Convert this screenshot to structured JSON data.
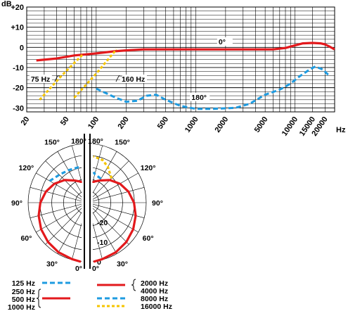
{
  "colors": {
    "red": "#e3191c",
    "blue": "#1e9be0",
    "yellow": "#f5c400",
    "grid": "#000000"
  },
  "chart_data": [
    {
      "type": "line",
      "x_scale": "log",
      "xlim": [
        20,
        25000
      ],
      "ylim": [
        -32,
        20
      ],
      "ylabel": "dB",
      "xlabel": "Hz",
      "y_ticks": [
        {
          "value": 20,
          "label": "+20"
        },
        {
          "value": 10,
          "label": "+10"
        },
        {
          "value": 0,
          "label": "0"
        },
        {
          "value": -10,
          "label": "-10"
        },
        {
          "value": -20,
          "label": "-20"
        },
        {
          "value": -30,
          "label": "-30"
        }
      ],
      "x_ticks": [
        {
          "value": 20,
          "label": "20"
        },
        {
          "value": 50,
          "label": "50"
        },
        {
          "value": 100,
          "label": "100"
        },
        {
          "value": 200,
          "label": "200"
        },
        {
          "value": 500,
          "label": "500"
        },
        {
          "value": 1000,
          "label": "1000"
        },
        {
          "value": 2000,
          "label": "2000"
        },
        {
          "value": 5000,
          "label": "5000"
        },
        {
          "value": 10000,
          "label": "10000"
        },
        {
          "value": 15000,
          "label": "15000"
        },
        {
          "value": 20000,
          "label": "20000"
        }
      ],
      "annotations": [
        "0°",
        "180°",
        "75 Hz",
        "160 Hz"
      ],
      "series": [
        {
          "name": "0°",
          "style": "solid",
          "color": "red",
          "points": [
            [
              25,
              -6.5
            ],
            [
              40,
              -5.5
            ],
            [
              60,
              -4
            ],
            [
              100,
              -3
            ],
            [
              150,
              -2
            ],
            [
              200,
              -1.5
            ],
            [
              300,
              -1
            ],
            [
              500,
              -1
            ],
            [
              1000,
              -1
            ],
            [
              2000,
              -1
            ],
            [
              4000,
              -1
            ],
            [
              6000,
              -1
            ],
            [
              8000,
              -0.3
            ],
            [
              10000,
              1
            ],
            [
              12000,
              2
            ],
            [
              15000,
              2.2
            ],
            [
              18000,
              2
            ],
            [
              20000,
              1.5
            ],
            [
              22000,
              0.5
            ],
            [
              25000,
              -1
            ]
          ]
        },
        {
          "name": "180°",
          "style": "dashed",
          "color": "blue",
          "points": [
            [
              100,
              -20.5
            ],
            [
              150,
              -24.5
            ],
            [
              200,
              -27
            ],
            [
              260,
              -26.5
            ],
            [
              320,
              -24
            ],
            [
              400,
              -23.5
            ],
            [
              500,
              -26
            ],
            [
              700,
              -29
            ],
            [
              1000,
              -30.5
            ],
            [
              1500,
              -30.5
            ],
            [
              2500,
              -30
            ],
            [
              3500,
              -28
            ],
            [
              5000,
              -23.5
            ],
            [
              7000,
              -21
            ],
            [
              9000,
              -18
            ],
            [
              11000,
              -14.5
            ],
            [
              14000,
              -11
            ],
            [
              16000,
              -9.5
            ],
            [
              19000,
              -11
            ],
            [
              22000,
              -14
            ]
          ]
        },
        {
          "name": "75 Hz",
          "style": "dashed",
          "color": "yellow",
          "points": [
            [
              27,
              -26
            ],
            [
              45,
              -14
            ],
            [
              75,
              -3
            ]
          ]
        },
        {
          "name": "160 Hz",
          "style": "dashed",
          "color": "yellow",
          "points": [
            [
              60,
              -25
            ],
            [
              100,
              -13
            ],
            [
              160,
              -1
            ]
          ]
        }
      ]
    },
    {
      "type": "polar",
      "angle_labels": [
        {
          "angle": 180,
          "label": "180°"
        },
        {
          "angle": 150,
          "label": "150°"
        },
        {
          "angle": 120,
          "label": "120°"
        },
        {
          "angle": 90,
          "label": "90°"
        },
        {
          "angle": 60,
          "label": "60°"
        },
        {
          "angle": 30,
          "label": "30°"
        },
        {
          "angle": 0,
          "label": "0°"
        }
      ],
      "radial_ticks": [
        {
          "value": 0,
          "label": "0"
        },
        {
          "value": -10,
          "label": "-10"
        },
        {
          "value": -20,
          "label": "-20"
        }
      ],
      "radial_range_db": [
        -30,
        0
      ],
      "legend": {
        "left": [
          {
            "labels": [
              "125 Hz"
            ],
            "color": "blue",
            "style": "dashed"
          },
          {
            "labels": [
              "250 Hz",
              "500 Hz",
              "1000 Hz"
            ],
            "color": "red",
            "style": "solid"
          }
        ],
        "right": [
          {
            "labels": [
              "2000 Hz",
              "4000 Hz"
            ],
            "color": "red",
            "style": "solid"
          },
          {
            "labels": [
              "8000 Hz"
            ],
            "color": "blue",
            "style": "dashed"
          },
          {
            "labels": [
              "16000 Hz"
            ],
            "color": "yellow",
            "style": "dashed"
          }
        ]
      },
      "series": [
        {
          "name": "250-1000 Hz (left half)",
          "side": "left",
          "color": "red",
          "style": "solid",
          "points": [
            [
              0,
              0
            ],
            [
              15,
              -0.3
            ],
            [
              30,
              -0.9
            ],
            [
              45,
              -1.8
            ],
            [
              60,
              -3
            ],
            [
              75,
              -4.5
            ],
            [
              90,
              -6.2
            ],
            [
              105,
              -8.3
            ],
            [
              120,
              -10.8
            ],
            [
              135,
              -13.8
            ],
            [
              150,
              -17
            ],
            [
              165,
              -19
            ],
            [
              180,
              -20
            ]
          ]
        },
        {
          "name": "125 Hz (left half)",
          "side": "left",
          "color": "blue",
          "style": "dashed",
          "points": [
            [
              120,
              -8
            ],
            [
              135,
              -10
            ],
            [
              150,
              -11
            ],
            [
              165,
              -11.5
            ],
            [
              180,
              -12
            ]
          ]
        },
        {
          "name": "2000-4000 Hz (right half)",
          "side": "right",
          "color": "red",
          "style": "solid",
          "points": [
            [
              0,
              0
            ],
            [
              15,
              -0.3
            ],
            [
              30,
              -0.9
            ],
            [
              45,
              -1.8
            ],
            [
              60,
              -3
            ],
            [
              75,
              -4.5
            ],
            [
              90,
              -6.2
            ],
            [
              105,
              -8.3
            ],
            [
              120,
              -10.8
            ],
            [
              135,
              -13.8
            ],
            [
              150,
              -17
            ],
            [
              165,
              -19
            ],
            [
              180,
              -20
            ]
          ]
        },
        {
          "name": "8000 Hz (right half)",
          "side": "right",
          "color": "blue",
          "style": "dashed",
          "points": [
            [
              150,
              -16
            ],
            [
              165,
              -15
            ],
            [
              180,
              -14.5
            ]
          ]
        },
        {
          "name": "16000 Hz (right half)",
          "side": "right",
          "color": "yellow",
          "style": "dashed",
          "points": [
            [
              135,
              -12.5
            ],
            [
              150,
              -9
            ],
            [
              160,
              -7
            ],
            [
              170,
              -6.5
            ],
            [
              180,
              -6.5
            ]
          ]
        }
      ]
    }
  ]
}
